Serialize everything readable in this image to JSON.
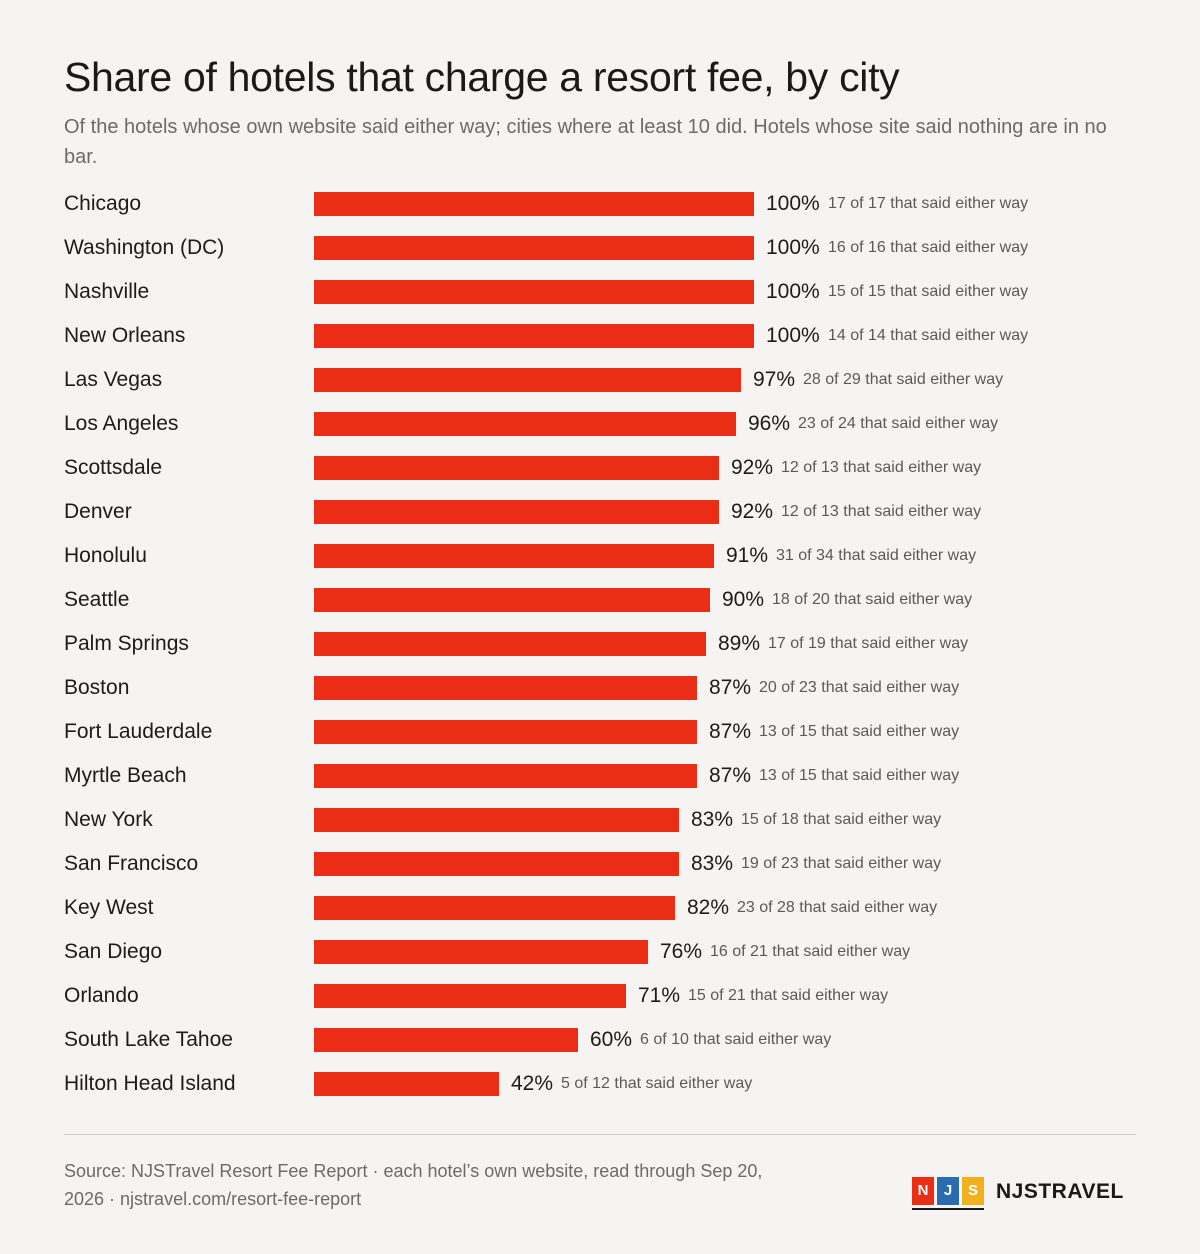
{
  "title": "Share of hotels that charge a resort fee, by city",
  "subtitle": "Of the hotels whose own website said either way; cities where at least 10 did. Hotels whose site said nothing are in no bar.",
  "chart_data": {
    "type": "bar",
    "orientation": "horizontal",
    "categories": [
      "Chicago",
      "Washington (DC)",
      "Nashville",
      "New Orleans",
      "Las Vegas",
      "Los Angeles",
      "Scottsdale",
      "Denver",
      "Honolulu",
      "Seattle",
      "Palm Springs",
      "Boston",
      "Fort Lauderdale",
      "Myrtle Beach",
      "New York",
      "San Francisco",
      "Key West",
      "San Diego",
      "Orlando",
      "South Lake Tahoe",
      "Hilton Head Island"
    ],
    "values": [
      100,
      100,
      100,
      100,
      97,
      96,
      92,
      92,
      91,
      90,
      89,
      87,
      87,
      87,
      83,
      83,
      82,
      76,
      71,
      60,
      42
    ],
    "value_labels": [
      "100%",
      "100%",
      "100%",
      "100%",
      "97%",
      "96%",
      "92%",
      "92%",
      "91%",
      "90%",
      "89%",
      "87%",
      "87%",
      "87%",
      "83%",
      "83%",
      "82%",
      "76%",
      "71%",
      "60%",
      "42%"
    ],
    "notes": [
      "17 of 17 that said either way",
      "16 of 16 that said either way",
      "15 of 15 that said either way",
      "14 of 14 that said either way",
      "28 of 29 that said either way",
      "23 of 24 that said either way",
      "12 of 13 that said either way",
      "12 of 13 that said either way",
      "31 of 34 that said either way",
      "18 of 20 that said either way",
      "17 of 19 that said either way",
      "20 of 23 that said either way",
      "13 of 15 that said either way",
      "13 of 15 that said either way",
      "15 of 18 that said either way",
      "19 of 23 that said either way",
      "23 of 28 that said either way",
      "16 of 21 that said either way",
      "15 of 21 that said either way",
      "6 of 10 that said either way",
      "5 of 12 that said either way"
    ],
    "xlim": [
      0,
      100
    ],
    "grid": false,
    "legend": "none",
    "bar_color": "#ea2e15"
  },
  "footer": {
    "source_line1": "Source: NJSTravel Resort Fee Report",
    "separator": "·",
    "source_line2": "each hotel’s own website, read through Sep 20, 2026",
    "url": "njstravel.com/resort-fee-report"
  },
  "brand": {
    "logo_letters": [
      {
        "letter": "N",
        "color": "#ea2e15"
      },
      {
        "letter": "J",
        "color": "#2b6cb0"
      },
      {
        "letter": "S",
        "color": "#f2b01e"
      }
    ],
    "name": "NJSTRAVEL"
  }
}
